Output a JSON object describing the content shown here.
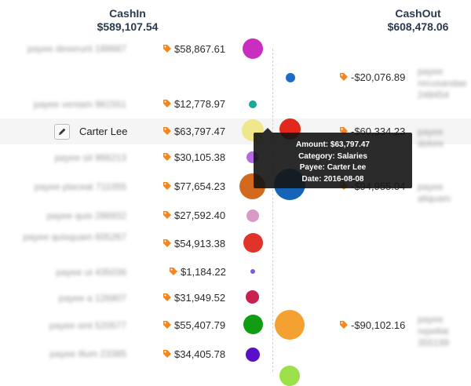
{
  "cashin": {
    "title": "CashIn",
    "total": "$589,107.54"
  },
  "cashout": {
    "title": "CashOut",
    "total": "$608,478.06"
  },
  "selected_row": {
    "name": "Carter Lee",
    "edit_icon": "pencil-icon"
  },
  "tag_icon": "tag-icon",
  "tooltip": {
    "amount": "Amount: $63,797.47",
    "category": "Category: Salaries",
    "payee": "Payee: Carter Lee",
    "date": "Date: 2016-08-08"
  },
  "in_rows": [
    {
      "payee": "payee deserunt 188687",
      "amount": "$58,867.61",
      "color": "#c92ec0"
    },
    {
      "payee": "payee veniam 981551",
      "amount": "$12,778.97",
      "color": "#1aa89a"
    },
    {
      "payee": "Carter Lee",
      "amount": "$63,797.47",
      "color": "#f0e68c"
    },
    {
      "payee": "payee sit 966213",
      "amount": "$30,105.38",
      "color": "#b46be0"
    },
    {
      "payee": "payee placeat 711055",
      "amount": "$77,654.23",
      "color": "#d2691e"
    },
    {
      "payee": "payee quis 286932",
      "amount": "$27,592.40",
      "color": "#d79ac8"
    },
    {
      "payee": "payee quisquam 605267",
      "amount": "$54,913.38",
      "color": "#e0342a"
    },
    {
      "payee": "payee ut 435036",
      "amount": "$1,184.22",
      "color": "#7b5be0"
    },
    {
      "payee": "payee a 126807",
      "amount": "$31,949.52",
      "color": "#c8224f"
    },
    {
      "payee": "payee sint 520577",
      "amount": "$55,407.79",
      "color": "#119d12"
    },
    {
      "payee": "payee illum 23385",
      "amount": "$34,405.78",
      "color": "#5a10c8"
    }
  ],
  "out_rows": [
    {
      "payee": "payee recusandae 248454",
      "amount": "-$20,076.89",
      "color": "#1e6bc8"
    },
    {
      "payee": "payee dolore",
      "amount": "-$60,334.23",
      "color": "#e0291c"
    },
    {
      "payee": "payee aliquam",
      "amount": "-$94,955.04",
      "color": "#1564b8"
    },
    {
      "payee": "payee repellat 355199",
      "amount": "-$90,102.16",
      "color": "#f5a132"
    }
  ],
  "colors": {
    "tag": "#f2871f",
    "header": "#2a3a4f"
  }
}
